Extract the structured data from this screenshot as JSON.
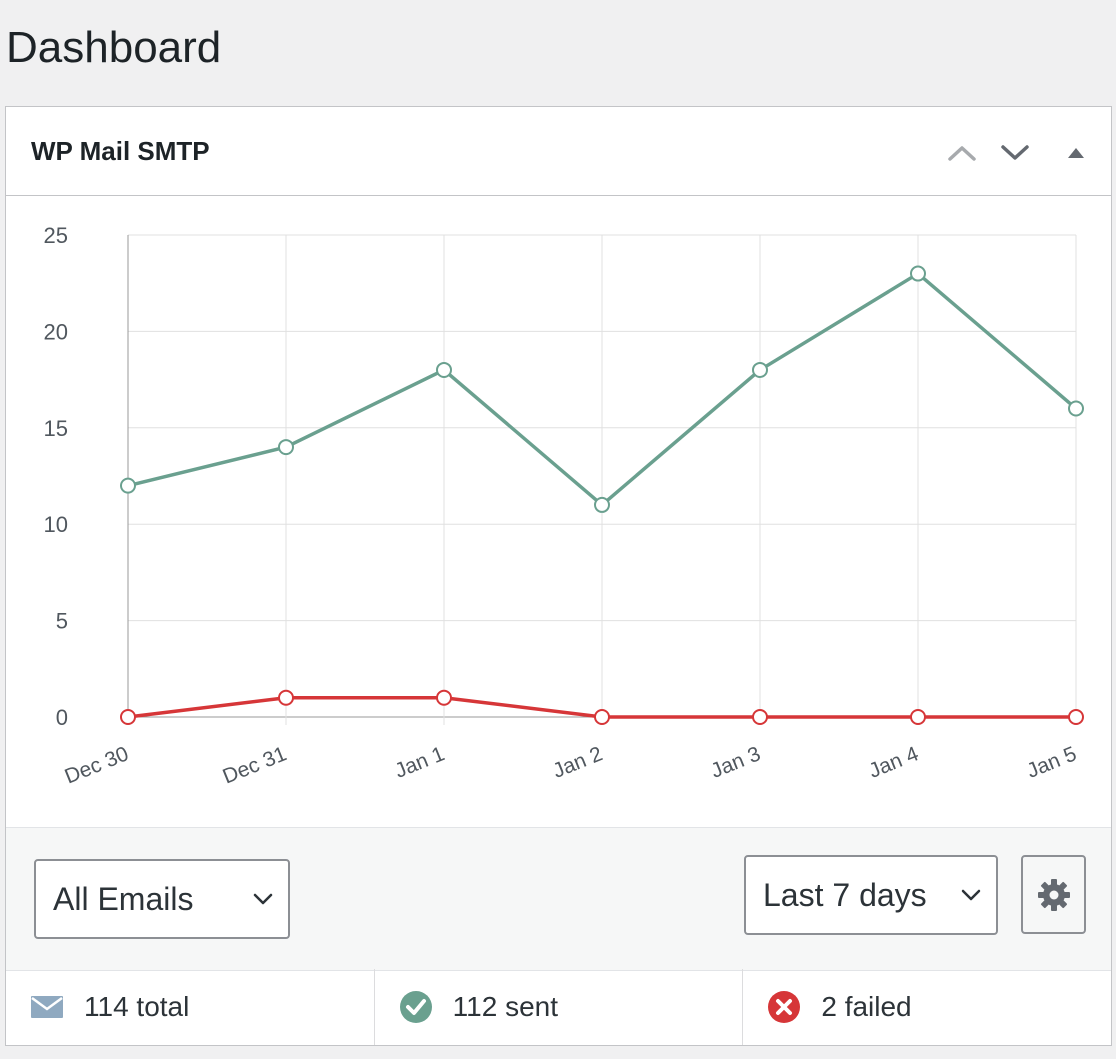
{
  "page": {
    "title": "Dashboard"
  },
  "widget": {
    "title": "WP Mail SMTP",
    "header_icons": [
      "chevron-up-icon",
      "chevron-down-icon",
      "triangle-up-icon"
    ]
  },
  "colors": {
    "sent": "#6aa08f",
    "failed": "#d63638",
    "grid": "#e0e0e0",
    "axis": "#999999"
  },
  "chart_data": {
    "type": "line",
    "categories": [
      "Dec 30",
      "Dec 31",
      "Jan 1",
      "Jan 2",
      "Jan 3",
      "Jan 4",
      "Jan 5"
    ],
    "series": [
      {
        "values": [
          12,
          14,
          18,
          11,
          18,
          23,
          16
        ],
        "color": "#6aa08f"
      },
      {
        "values": [
          0,
          1,
          1,
          0,
          0,
          0,
          0
        ],
        "color": "#d63638"
      }
    ],
    "ylim": [
      0,
      25
    ],
    "yticks": [
      0,
      5,
      10,
      15,
      20,
      25
    ],
    "grid": true,
    "xlabel": "",
    "ylabel": ""
  },
  "controls": {
    "email_filter": {
      "selected": "All Emails"
    },
    "period": {
      "selected": "Last 7 days"
    },
    "settings_icon": "gear-icon"
  },
  "stats": {
    "total": "114 total",
    "sent": "112 sent",
    "failed": "2 failed"
  }
}
